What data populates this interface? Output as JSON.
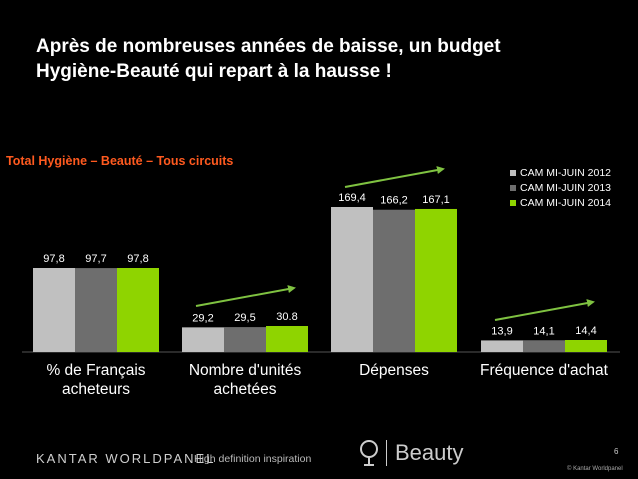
{
  "title": {
    "line1": "Après de nombreuses années de baisse, un budget",
    "line2": "Hygiène-Beauté qui repart à la hausse !"
  },
  "subtitle": "Total Hygiène – Beauté – Tous circuits",
  "chart_data": {
    "type": "bar",
    "categories": [
      "% de Français\nacheteurs",
      "Nombre d'unités\nachetées",
      "Dépenses",
      "Fréquence d'achat"
    ],
    "series": [
      {
        "name": "CAM MI-JUIN 2012",
        "values": [
          97.8,
          29.2,
          169.4,
          13.9
        ],
        "labels": [
          "97,8",
          "29,2",
          "169,4",
          "13,9"
        ],
        "color": "#c0c0c0"
      },
      {
        "name": "CAM MI-JUIN 2013",
        "values": [
          97.7,
          29.5,
          166.2,
          14.1
        ],
        "labels": [
          "97,7",
          "29,5",
          "166,2",
          "14,1"
        ],
        "color": "#6e6e6e"
      },
      {
        "name": "CAM MI-JUIN 2014",
        "values": [
          97.8,
          30.8,
          167.1,
          14.4
        ],
        "labels": [
          "97,8",
          "30.8",
          "167,1",
          "14,4"
        ],
        "color": "#8fd400"
      }
    ],
    "legend_position": "top-right",
    "trend_arrows": [
      false,
      true,
      true,
      true
    ],
    "arrow_color": "#7fc241"
  },
  "footer": {
    "brand": "KANTAR WORLDPANEL",
    "tagline": "High definition inspiration",
    "product": "Beauty",
    "page_number": "6",
    "copyright": "© Kantar Worldpanel"
  }
}
